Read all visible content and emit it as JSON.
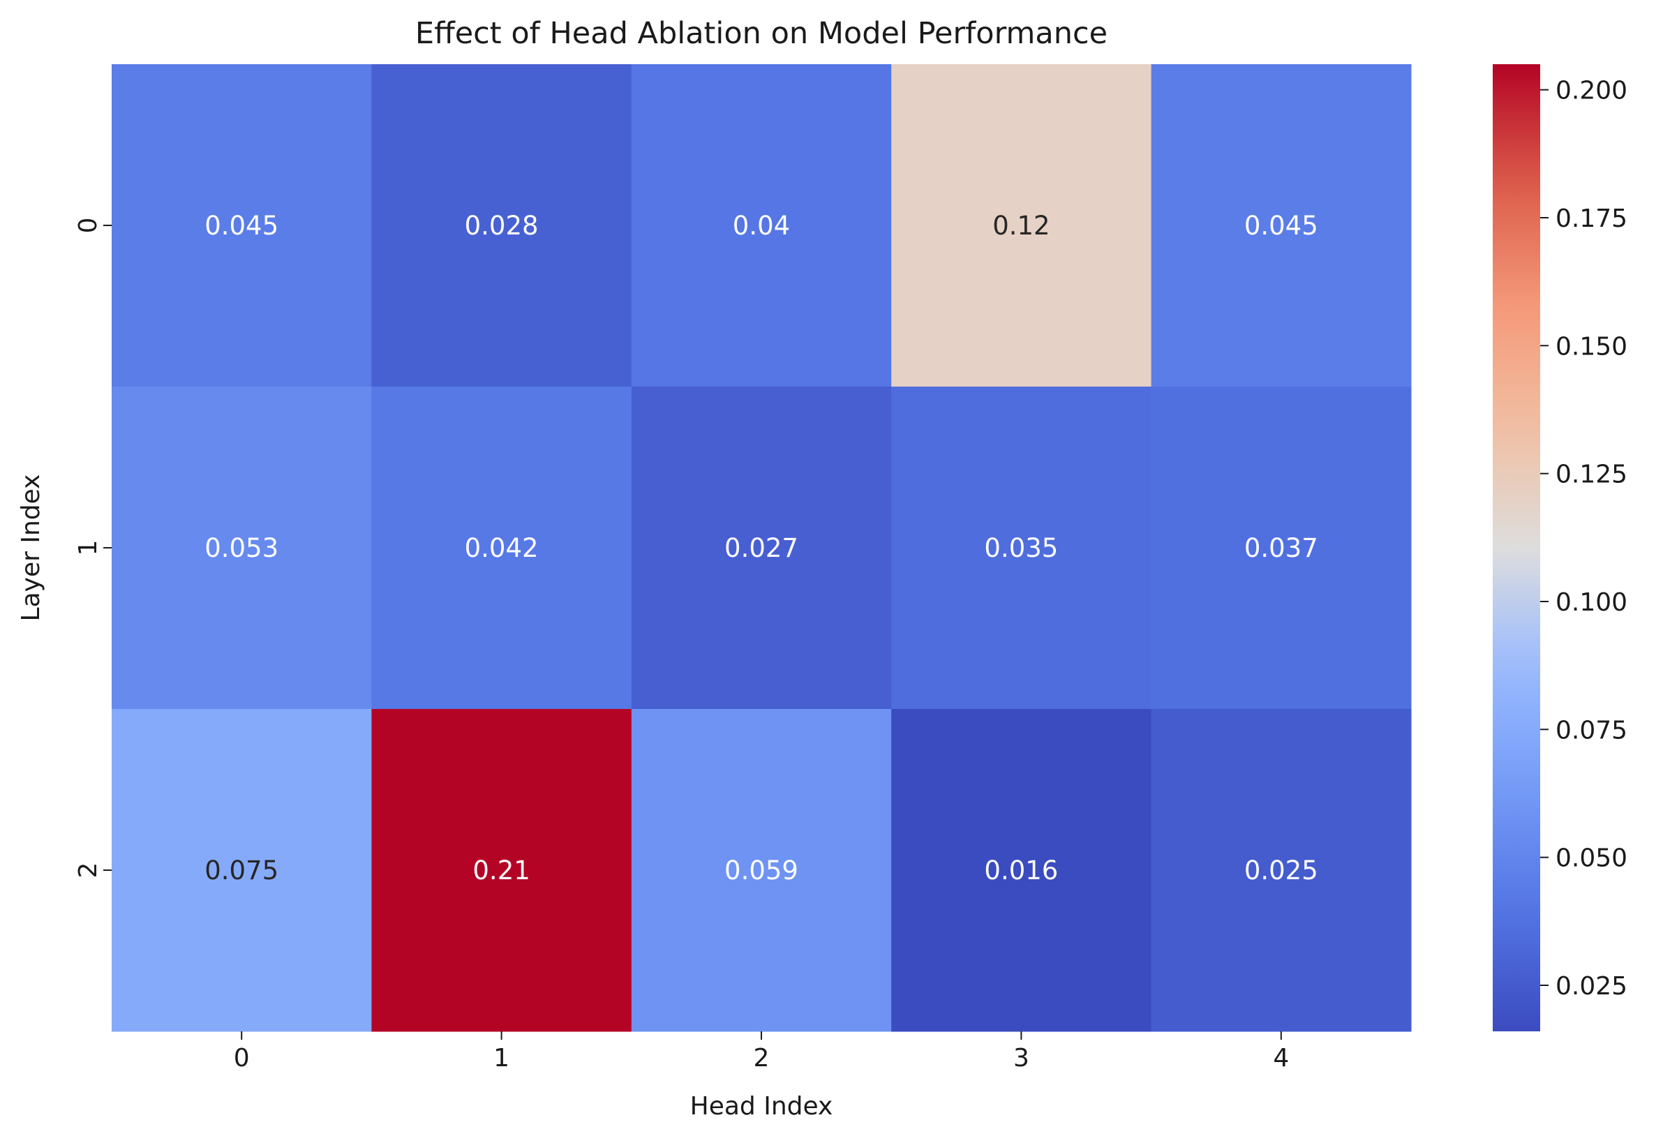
{
  "chart_data": {
    "type": "heatmap",
    "title": "Effect of Head Ablation on Model Performance",
    "xlabel": "Head Index",
    "ylabel": "Layer Index",
    "x_categories": [
      "0",
      "1",
      "2",
      "3",
      "4"
    ],
    "y_categories": [
      "0",
      "1",
      "2"
    ],
    "values": [
      [
        0.045,
        0.028,
        0.04,
        0.12,
        0.045
      ],
      [
        0.053,
        0.042,
        0.027,
        0.035,
        0.037
      ],
      [
        0.075,
        0.21,
        0.059,
        0.016,
        0.025
      ]
    ],
    "cell_labels": [
      [
        "0.045",
        "0.028",
        "0.04",
        "0.12",
        "0.045"
      ],
      [
        "0.053",
        "0.042",
        "0.027",
        "0.035",
        "0.037"
      ],
      [
        "0.075",
        "0.21",
        "0.059",
        "0.016",
        "0.025"
      ]
    ],
    "colormap": "coolwarm",
    "colorbar": {
      "min": 0.016,
      "max": 0.205,
      "ticks": [
        0.025,
        0.05,
        0.075,
        0.1,
        0.125,
        0.15,
        0.175,
        0.2
      ],
      "tick_labels": [
        "0.025",
        "0.050",
        "0.075",
        "0.100",
        "0.125",
        "0.150",
        "0.175",
        "0.200"
      ]
    },
    "grid": false,
    "legend": "colorbar-right"
  }
}
